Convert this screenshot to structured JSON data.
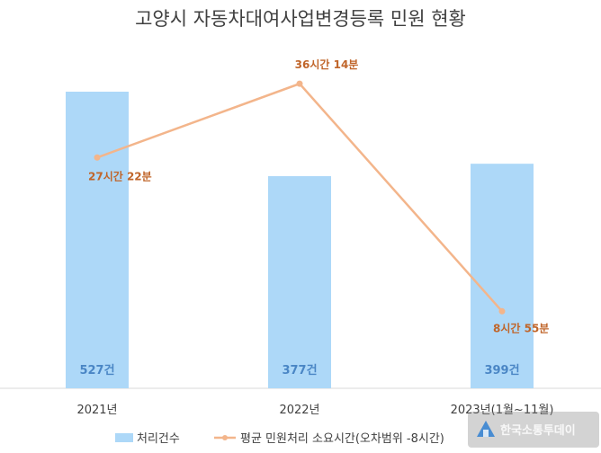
{
  "title": "고양시 자동차대여사업변경등록 민원 현황",
  "colors": {
    "bar": "#add8f8",
    "line": "#f3b58b",
    "line_label": "#c0652a",
    "bar_label": "#4a86c5"
  },
  "chart_data": {
    "type": "bar",
    "categories": [
      "2021년",
      "2022년",
      "2023년(1월~11월)"
    ],
    "series": [
      {
        "name": "처리건수",
        "type": "bar",
        "values": [
          527,
          377,
          399
        ],
        "labels": [
          "527건",
          "377건",
          "399건"
        ]
      },
      {
        "name": "평균 민원처리 소요시간(오차범위 -8시간)",
        "type": "line",
        "values": [
          27.37,
          36.23,
          8.92
        ],
        "labels": [
          "27시간 22분",
          "36시간 14분",
          "8시간 55분"
        ]
      }
    ],
    "legend": "bottom"
  },
  "watermark": {
    "text": "한국소통투데이",
    "icon": "home-logo-icon"
  }
}
